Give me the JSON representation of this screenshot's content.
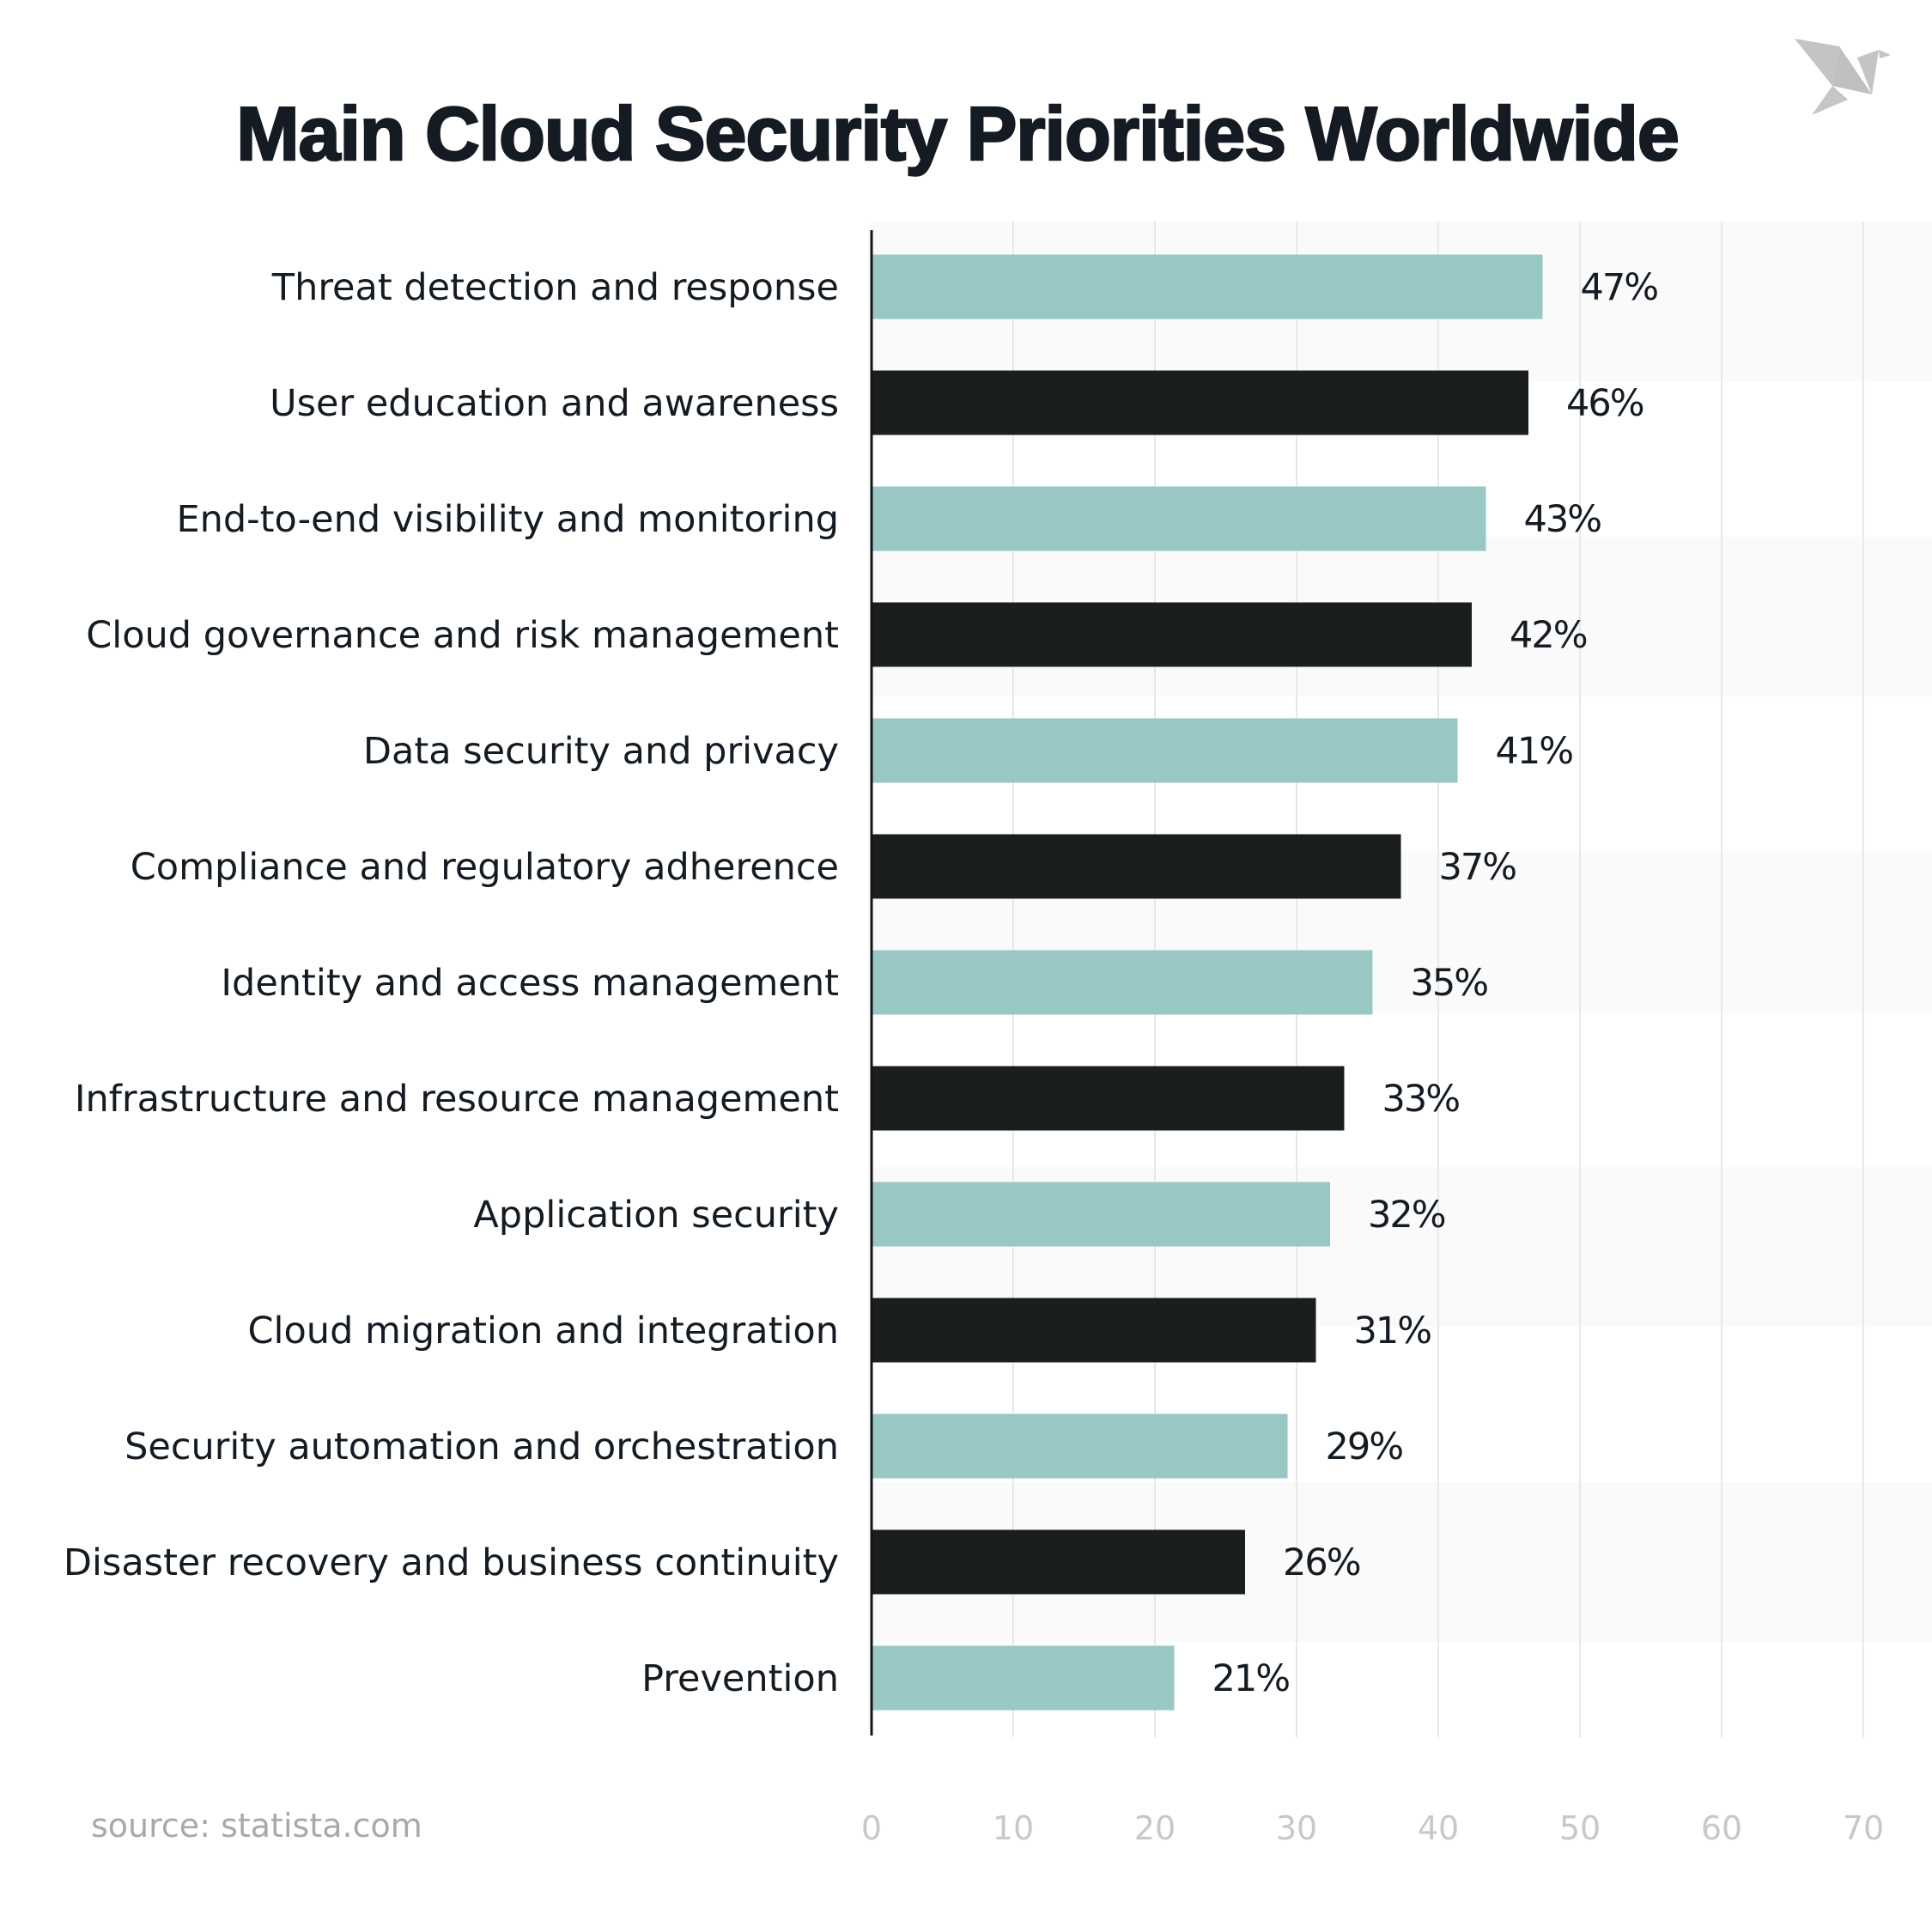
{
  "title": "Main Cloud Security Priorities Worldwide",
  "source": "source: statista.com",
  "logo": {
    "icon": "origami-bird-icon",
    "color": "#c4c4c4"
  },
  "colors": {
    "teal": "#99c7c4",
    "dark": "#1b1e1f",
    "band": "#fafafa",
    "grid": "#e8e8e8",
    "tick": "#c8c8c8"
  },
  "chart_data": {
    "type": "bar",
    "orientation": "horizontal",
    "title": "Main Cloud Security Priorities Worldwide",
    "categories": [
      "Threat detection and response",
      "User education and awareness",
      "End-to-end visibility and monitoring",
      "Cloud governance and risk management",
      "Data security and privacy",
      "Compliance and regulatory adherence",
      "Identity and access management",
      "Infrastructure and resource management",
      "Application security",
      "Cloud migration and integration",
      "Security automation and orchestration",
      "Disaster recovery and business continuity",
      "Prevention"
    ],
    "values": [
      47,
      46,
      43,
      42,
      41,
      37,
      35,
      33,
      32,
      31,
      29,
      26,
      21
    ],
    "value_labels": [
      "47%",
      "46%",
      "43%",
      "42%",
      "41%",
      "37%",
      "35%",
      "33%",
      "32%",
      "31%",
      "29%",
      "26%",
      "21%"
    ],
    "bar_colors": [
      "teal",
      "dark",
      "teal",
      "dark",
      "teal",
      "dark",
      "teal",
      "dark",
      "teal",
      "dark",
      "teal",
      "dark",
      "teal"
    ],
    "xlim": [
      0,
      70
    ],
    "xticks": [
      0,
      10,
      20,
      30,
      40,
      50,
      60,
      70
    ],
    "xtick_labels": [
      "0",
      "10",
      "20",
      "30",
      "40",
      "50",
      "60",
      "70"
    ],
    "grid": true,
    "xlabel": "",
    "ylabel": ""
  }
}
